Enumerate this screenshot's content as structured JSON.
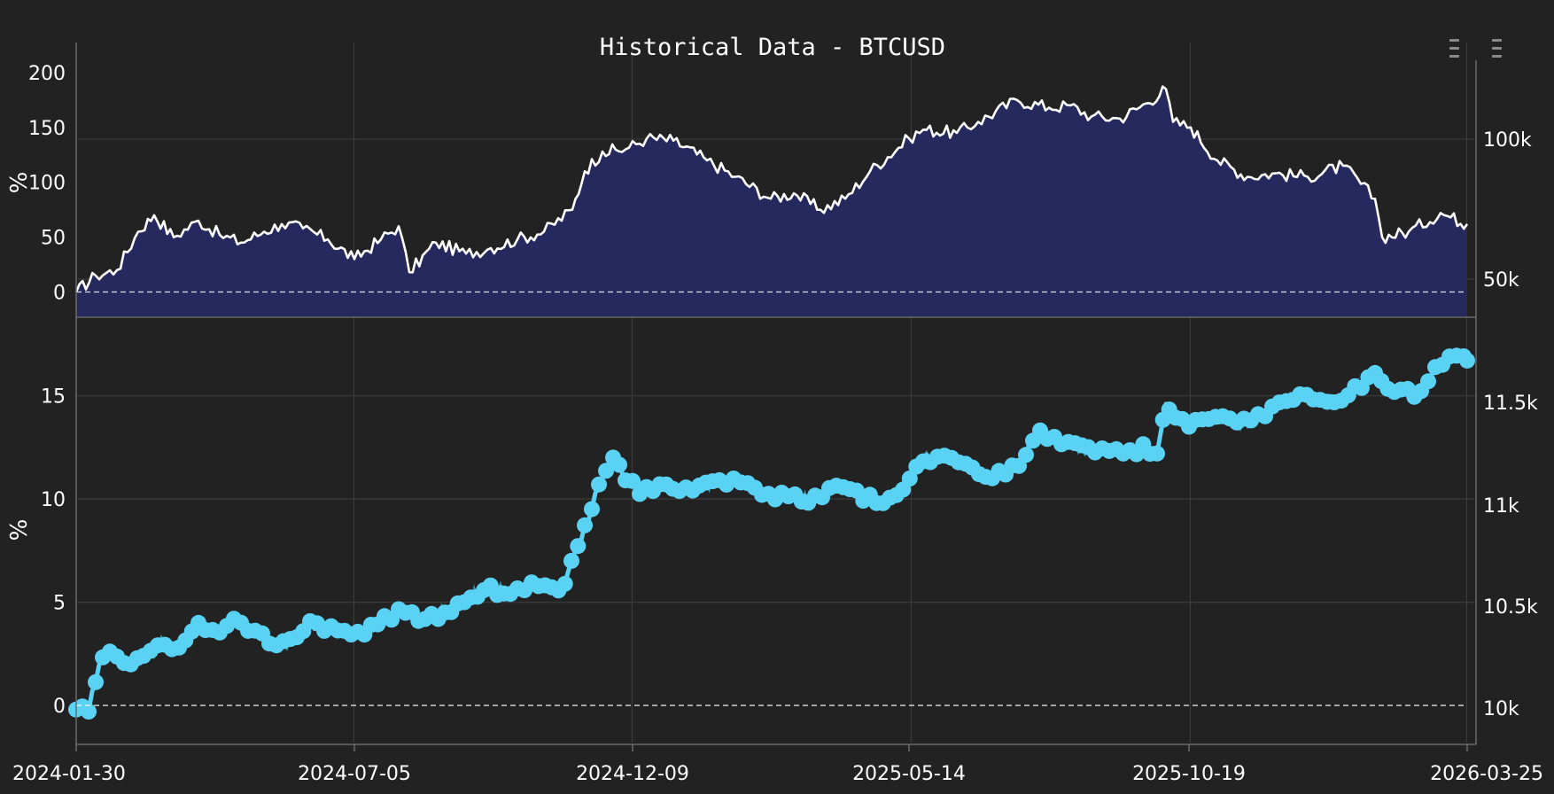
{
  "chart_data": [
    {
      "type": "area",
      "title": "Historical Data - BTCUSD",
      "ylabel": "%",
      "ylim": [
        -23,
        208
      ],
      "yticks": [
        0,
        50,
        100,
        150,
        200
      ],
      "y2ticks": [
        "100k",
        "50k"
      ],
      "x_dates": [
        "2024-01-30",
        "2024-07-05",
        "2024-12-09",
        "2025-05-14",
        "2025-10-19",
        "2026-03-25"
      ],
      "grid": true,
      "colors": {
        "line": "#ffffff",
        "fill": "#25295e"
      },
      "series": [
        {
          "dates": [
            "2024-01-30",
            "2024-02-10",
            "2024-02-22",
            "2024-03-05",
            "2024-03-14",
            "2024-03-25",
            "2024-04-08",
            "2024-04-20",
            "2024-05-02",
            "2024-05-15",
            "2024-05-25",
            "2024-06-06",
            "2024-06-20",
            "2024-07-05",
            "2024-07-20",
            "2024-07-30",
            "2024-08-05",
            "2024-08-20",
            "2024-09-06",
            "2024-09-20",
            "2024-10-05",
            "2024-10-20",
            "2024-11-05",
            "2024-11-12",
            "2024-11-22",
            "2024-12-05",
            "2024-12-17",
            "2025-01-01",
            "2025-01-20",
            "2025-02-05",
            "2025-02-25",
            "2025-03-10",
            "2025-03-25",
            "2025-04-08",
            "2025-04-22",
            "2025-05-14",
            "2025-05-22",
            "2025-06-10",
            "2025-06-22",
            "2025-07-14",
            "2025-08-01",
            "2025-08-13",
            "2025-08-25",
            "2025-09-10",
            "2025-09-25",
            "2025-10-06",
            "2025-10-10",
            "2025-10-20",
            "2025-11-04",
            "2025-11-21",
            "2025-12-05",
            "2025-12-25",
            "2026-01-14",
            "2026-02-01",
            "2026-02-05",
            "2026-02-20",
            "2026-03-10",
            "2026-03-25"
          ],
          "values": [
            0,
            15,
            20,
            55,
            70,
            50,
            65,
            52,
            45,
            55,
            62,
            58,
            48,
            30,
            48,
            60,
            18,
            45,
            35,
            40,
            48,
            55,
            75,
            110,
            128,
            130,
            140,
            138,
            120,
            105,
            85,
            90,
            75,
            85,
            110,
            140,
            148,
            145,
            155,
            175,
            168,
            170,
            160,
            158,
            172,
            185,
            155,
            150,
            120,
            105,
            108,
            105,
            115,
            85,
            50,
            55,
            72,
            62
          ]
        }
      ]
    },
    {
      "type": "line",
      "ylabel": "%",
      "ylim": [
        -1.8,
        18.8
      ],
      "yticks": [
        0,
        5,
        10,
        15
      ],
      "y2ticks": [
        "11.5k",
        "11k",
        "10.5k",
        "10k"
      ],
      "x_dates": [
        "2024-01-30",
        "2024-07-05",
        "2024-12-09",
        "2025-05-14",
        "2025-10-19",
        "2026-03-25"
      ],
      "grid": true,
      "colors": {
        "line": "#5ad2f4"
      },
      "series": [
        {
          "dates": [
            "2024-01-30",
            "2024-02-06",
            "2024-02-12",
            "2024-02-20",
            "2024-02-28",
            "2024-03-08",
            "2024-03-18",
            "2024-03-28",
            "2024-04-08",
            "2024-04-18",
            "2024-04-28",
            "2024-05-08",
            "2024-05-18",
            "2024-05-28",
            "2024-06-08",
            "2024-06-20",
            "2024-07-05",
            "2024-07-20",
            "2024-08-01",
            "2024-08-12",
            "2024-08-25",
            "2024-09-05",
            "2024-09-18",
            "2024-10-01",
            "2024-10-15",
            "2024-10-30",
            "2024-11-10",
            "2024-11-20",
            "2024-11-28",
            "2024-12-05",
            "2024-12-15",
            "2024-12-28",
            "2025-01-10",
            "2025-01-25",
            "2025-02-08",
            "2025-02-20",
            "2025-03-05",
            "2025-03-20",
            "2025-04-05",
            "2025-04-20",
            "2025-05-05",
            "2025-05-20",
            "2025-06-01",
            "2025-06-15",
            "2025-06-30",
            "2025-07-15",
            "2025-07-25",
            "2025-08-10",
            "2025-08-25",
            "2025-09-10",
            "2025-09-25",
            "2025-10-01",
            "2025-10-06",
            "2025-10-19",
            "2025-11-01",
            "2025-11-15",
            "2025-12-01",
            "2025-12-15",
            "2026-01-01",
            "2026-01-15",
            "2026-02-01",
            "2026-02-10",
            "2026-02-25",
            "2026-03-05",
            "2026-03-15",
            "2026-03-25"
          ],
          "values": [
            -0.2,
            -0.3,
            2.0,
            2.6,
            2.1,
            2.4,
            3.1,
            2.8,
            4.0,
            3.6,
            4.2,
            3.7,
            3.0,
            2.9,
            4.0,
            3.8,
            3.4,
            4.0,
            4.7,
            4.0,
            4.5,
            5.0,
            5.7,
            5.4,
            5.9,
            5.7,
            8.0,
            10.7,
            12.0,
            10.9,
            10.3,
            10.7,
            10.4,
            11.0,
            10.8,
            10.2,
            10.1,
            9.9,
            10.7,
            10.0,
            10.0,
            11.8,
            12.2,
            11.7,
            11.0,
            11.6,
            13.3,
            12.8,
            12.3,
            12.2,
            12.5,
            12.2,
            14.6,
            13.5,
            14.0,
            13.7,
            14.0,
            15.0,
            14.8,
            14.9,
            16.1,
            15.4,
            15.0,
            16.0,
            16.9,
            16.7
          ]
        }
      ]
    }
  ]
}
